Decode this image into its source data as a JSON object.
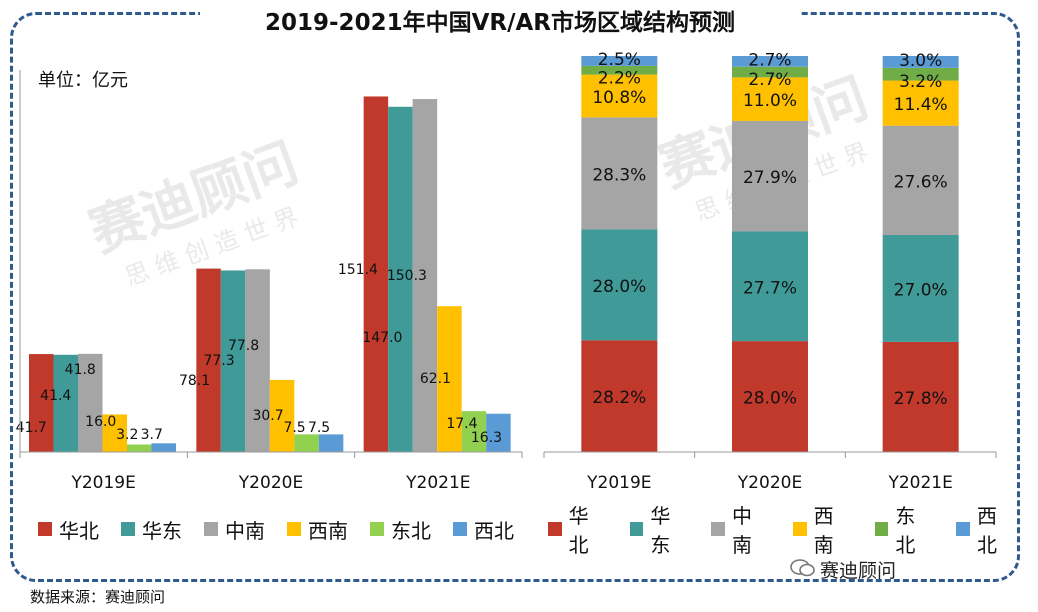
{
  "title": "2019-2021年中国VR/AR市场区域结构预测",
  "unit_label": "单位：亿元",
  "source": "数据来源：赛迪顾问",
  "brand": "赛迪顾问",
  "watermark": {
    "main": "赛迪顾问",
    "sub": "思 维 创 造 世 界"
  },
  "colors": {
    "华北": "#c0392b",
    "华东": "#3f9a98",
    "中南": "#a5a5a5",
    "西南": "#ffc000",
    "东北": "#92d050",
    "东北_right": "#70ad47",
    "西北": "#5b9bd5",
    "frame": "#2e5a8e"
  },
  "chart_data": [
    {
      "type": "bar",
      "categories": [
        "Y2019E",
        "Y2020E",
        "Y2021E"
      ],
      "series": [
        {
          "name": "华北",
          "values": [
            41.7,
            78.1,
            151.4
          ]
        },
        {
          "name": "华东",
          "values": [
            41.4,
            77.3,
            147.0
          ]
        },
        {
          "name": "中南",
          "values": [
            41.8,
            77.8,
            150.3
          ]
        },
        {
          "name": "西南",
          "values": [
            16.0,
            30.7,
            62.1
          ]
        },
        {
          "name": "东北",
          "values": [
            3.2,
            7.5,
            17.4
          ]
        },
        {
          "name": "西北",
          "values": [
            3.7,
            7.5,
            16.3
          ]
        }
      ],
      "data_labels": [
        [
          "41.7",
          "41.4",
          "41.8",
          "16.0",
          "3.2",
          "3.7"
        ],
        [
          "78.1",
          "77.3",
          "77.8",
          "30.7",
          "7.5",
          "7.5"
        ],
        [
          "151.4",
          "147.0",
          "150.3",
          "62.1",
          "17.4",
          "16.3"
        ]
      ],
      "ylim": [
        0,
        155
      ],
      "grid": false,
      "legend": "bottom"
    },
    {
      "type": "bar",
      "stacked": true,
      "percent": true,
      "categories": [
        "Y2019E",
        "Y2020E",
        "Y2021E"
      ],
      "series": [
        {
          "name": "华北",
          "values": [
            28.2,
            28.0,
            27.8
          ]
        },
        {
          "name": "华东",
          "values": [
            28.0,
            27.7,
            27.0
          ]
        },
        {
          "name": "中南",
          "values": [
            28.3,
            27.9,
            27.6
          ]
        },
        {
          "name": "西南",
          "values": [
            10.8,
            11.0,
            11.4
          ]
        },
        {
          "name": "东北",
          "values": [
            2.2,
            2.7,
            3.2
          ]
        },
        {
          "name": "西北",
          "values": [
            2.5,
            2.7,
            3.0
          ]
        }
      ],
      "data_labels": [
        [
          "28.2%",
          "28.0%",
          "28.3%",
          "10.8%",
          "2.2%",
          "2.5%"
        ],
        [
          "28.0%",
          "27.7%",
          "27.9%",
          "11.0%",
          "2.7%",
          "2.7%"
        ],
        [
          "27.8%",
          "27.0%",
          "27.6%",
          "11.4%",
          "3.2%",
          "3.0%"
        ]
      ],
      "ylim": [
        0,
        100
      ],
      "grid": false,
      "legend": "bottom"
    }
  ]
}
